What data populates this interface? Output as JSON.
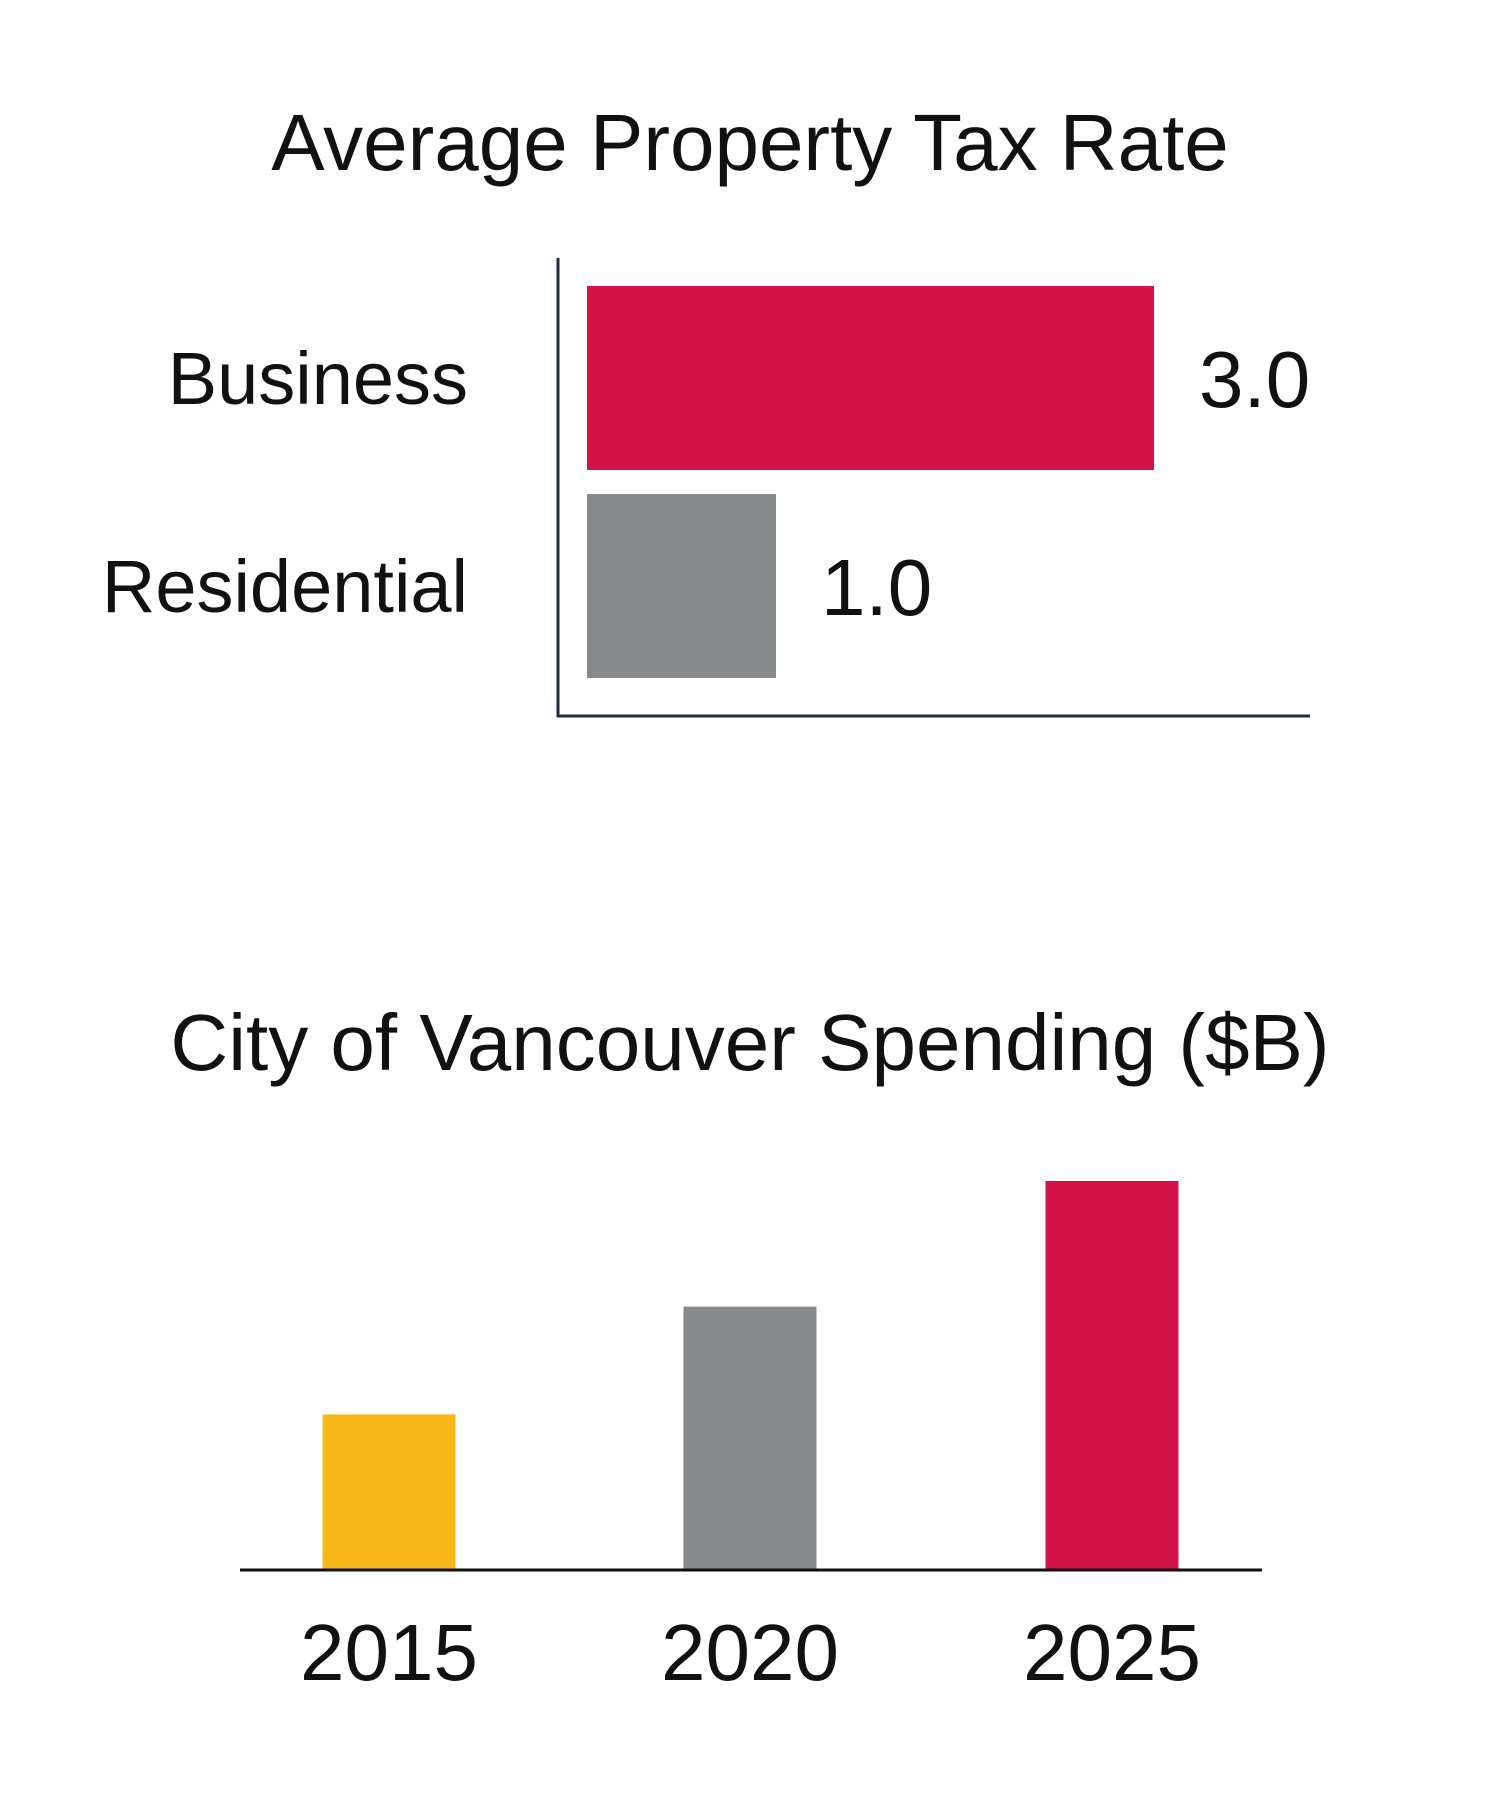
{
  "chart_data": [
    {
      "type": "bar",
      "orientation": "horizontal",
      "title": "Average Property Tax Rate",
      "categories": [
        "Business",
        "Residential"
      ],
      "values": [
        3.0,
        1.0
      ],
      "value_labels": [
        "3.0",
        "1.0"
      ],
      "colors": [
        "#d31245",
        "#878a8a"
      ],
      "xlim": [
        0,
        4
      ],
      "grid": false,
      "legend": "none"
    },
    {
      "type": "bar",
      "orientation": "vertical",
      "title": "City of Vancouver Spending ($B)",
      "categories": [
        "2015",
        "2020",
        "2025"
      ],
      "values": [
        1.3,
        2.2,
        3.25
      ],
      "colors": [
        "#f7b718",
        "#878a8a",
        "#d31245"
      ],
      "ylim": [
        0,
        3.25
      ],
      "grid": false,
      "legend": "none"
    }
  ]
}
